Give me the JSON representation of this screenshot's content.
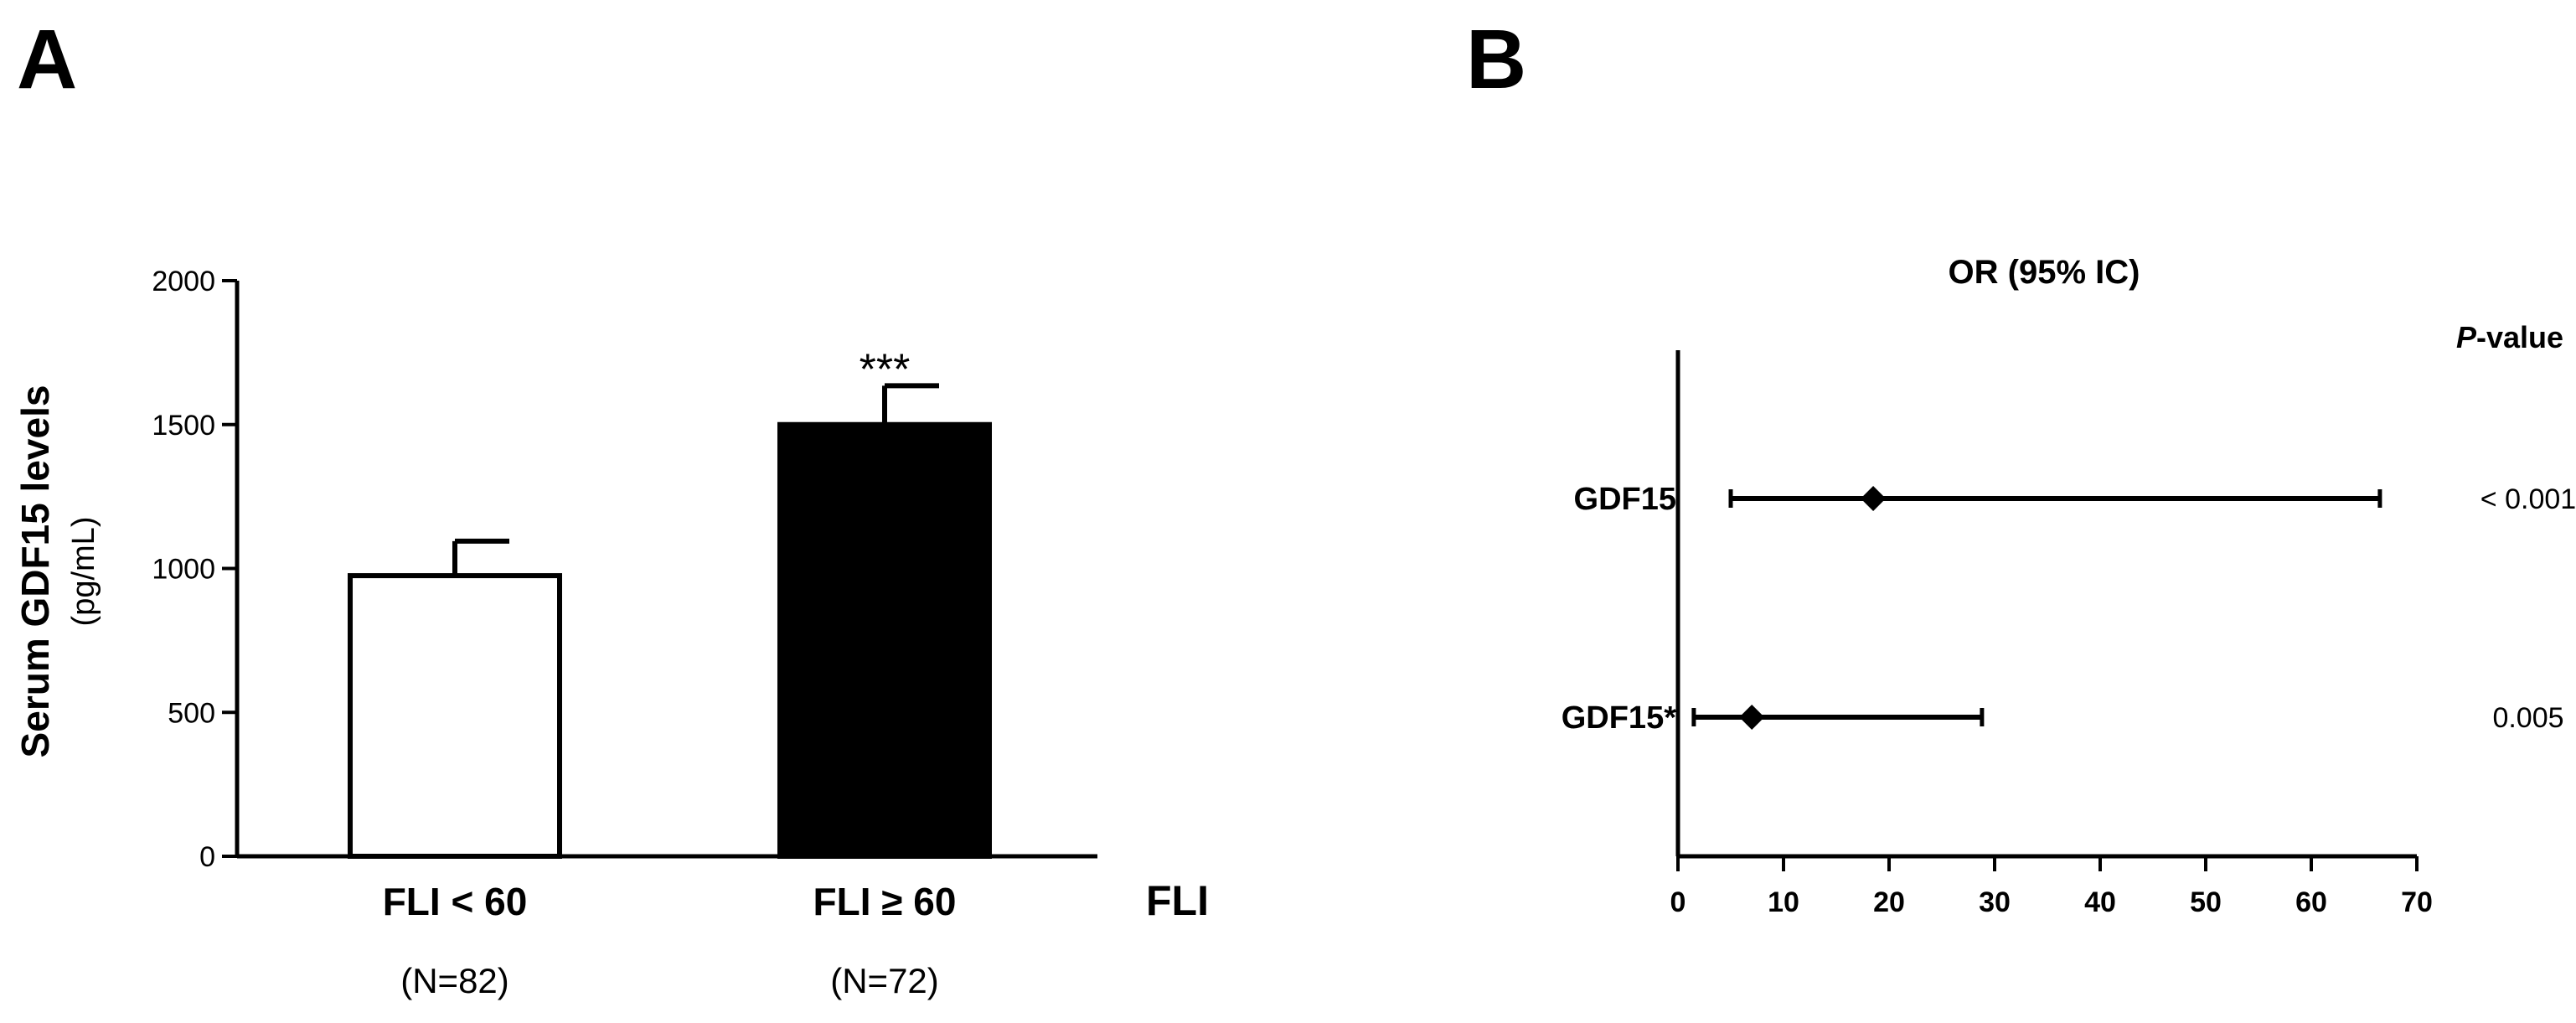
{
  "figure": {
    "panel_a_label": "A",
    "panel_b_label": "B"
  },
  "chart_data": [
    {
      "type": "bar",
      "panel": "A",
      "categories": [
        "FLI < 60",
        "FLI ≥ 60"
      ],
      "category_counts": [
        "(N=82)",
        "(N=72)"
      ],
      "values": [
        975,
        1500
      ],
      "error_upper": [
        1095,
        1635
      ],
      "bar_colors": [
        "#ffffff",
        "#000000"
      ],
      "significance": [
        "",
        "***"
      ],
      "ylabel": "Serum GDF15 levels",
      "ylabel_unit": "(pg/mL)",
      "xlabel": "FLI",
      "ylim": [
        0,
        2000
      ],
      "yticks": [
        0,
        500,
        1000,
        1500,
        2000
      ]
    },
    {
      "type": "forest",
      "panel": "B",
      "title": "OR (95% IC)",
      "pvalue_header_italic": "P",
      "pvalue_header_rest": "-value",
      "rows": [
        {
          "label": "GDF15",
          "or": 18.5,
          "ci_low": 5.0,
          "ci_high": 66.5,
          "pvalue": "< 0.001"
        },
        {
          "label": "GDF15*",
          "or": 7.0,
          "ci_low": 1.5,
          "ci_high": 28.8,
          "pvalue": "0.005"
        }
      ],
      "xlim": [
        0,
        70
      ],
      "xticks": [
        0,
        10,
        20,
        30,
        40,
        50,
        60,
        70
      ]
    }
  ]
}
